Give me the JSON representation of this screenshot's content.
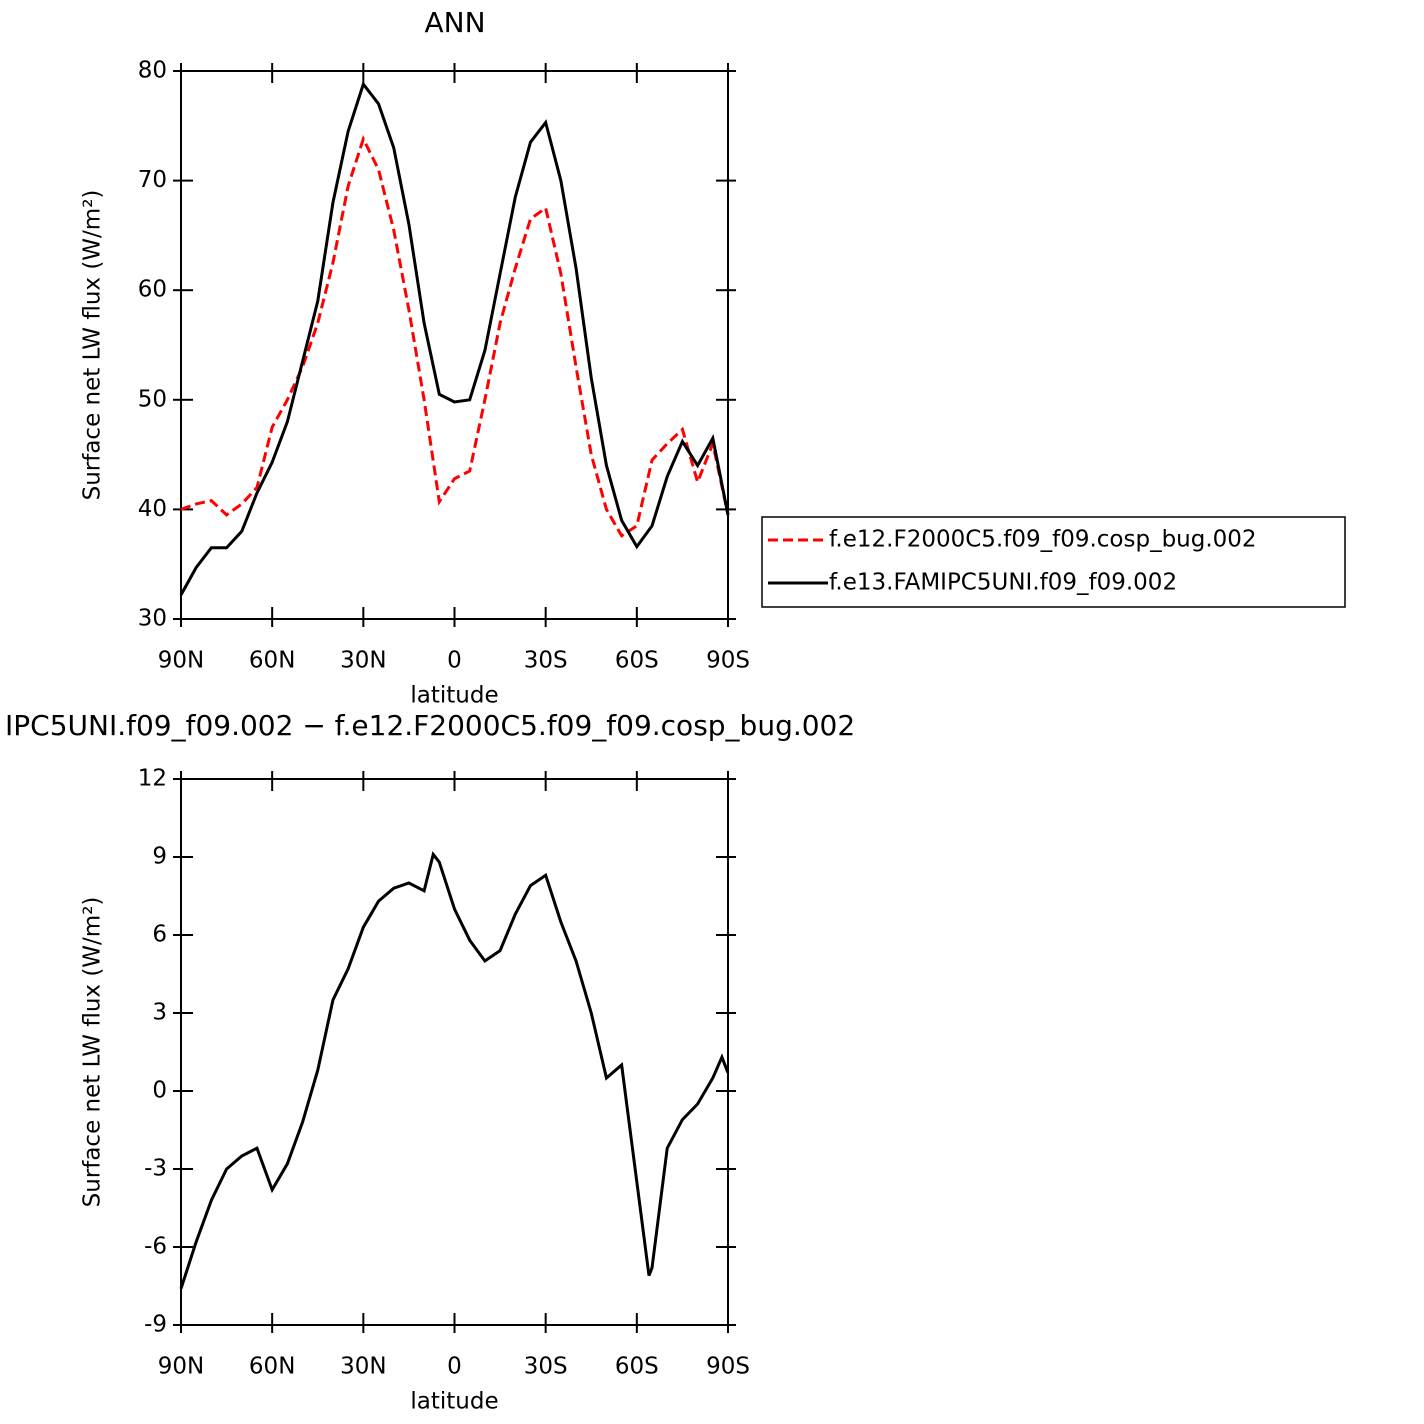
{
  "chart_data": [
    {
      "type": "line",
      "title": "ANN",
      "xlabel": "latitude",
      "ylabel": "Surface net LW flux (W/m²)",
      "x": [
        90,
        85,
        80,
        75,
        70,
        65,
        60,
        55,
        50,
        45,
        40,
        35,
        30,
        25,
        20,
        15,
        10,
        5,
        0,
        -5,
        -10,
        -15,
        -20,
        -25,
        -30,
        -35,
        -40,
        -45,
        -50,
        -55,
        -60,
        -65,
        -70,
        -75,
        -80,
        -85,
        -90
      ],
      "series": [
        {
          "name": "f.e12.F2000C5.f09_f09.cosp_bug.002",
          "color": "#ff0000",
          "line_style": "dashed",
          "values": [
            40,
            40.5,
            40.8,
            39.5,
            40.5,
            42,
            47.5,
            50,
            53,
            57,
            62.5,
            69.5,
            73.8,
            71,
            65.5,
            58.2,
            50,
            40.7,
            42.8,
            43.5,
            50,
            57,
            62,
            66.5,
            67.5,
            61.5,
            53,
            45,
            40,
            37.6,
            38.5,
            44.5,
            46,
            47.3,
            42.5,
            46,
            39.5
          ]
        },
        {
          "name": "f.e13.FAMIPC5UNI.f09_f09.002",
          "color": "#000000",
          "line_style": "solid",
          "values": [
            32.2,
            34.7,
            36.5,
            36.5,
            38,
            41.5,
            44.3,
            48,
            53.5,
            59,
            68,
            74.5,
            78.8,
            77,
            73,
            66,
            57,
            50.5,
            49.8,
            50,
            54.5,
            61.5,
            68.5,
            73.5,
            75.3,
            70,
            62,
            52,
            44,
            39,
            36.6,
            38.5,
            43,
            46.2,
            44,
            46.5,
            39.5
          ]
        }
      ],
      "xlim": [
        90,
        -90
      ],
      "xticks": [
        {
          "value": 90,
          "label": "90N"
        },
        {
          "value": 60,
          "label": "60N"
        },
        {
          "value": 30,
          "label": "30N"
        },
        0,
        {
          "value": -30,
          "label": "30S"
        },
        {
          "value": -60,
          "label": "60S"
        },
        {
          "value": -90,
          "label": "90S"
        }
      ],
      "ylim": [
        30,
        80
      ],
      "yticks": [
        30,
        40,
        50,
        60,
        70,
        80
      ],
      "legend": "right"
    },
    {
      "type": "line",
      "title": "IPC5UNI.f09_f09.002 − f.e12.F2000C5.f09_f09.cosp_bug.002",
      "xlabel": "latitude",
      "ylabel": "Surface net LW flux (W/m²)",
      "x": [
        90,
        85,
        80,
        75,
        70,
        65,
        60,
        55,
        50,
        45,
        40,
        35,
        30,
        25,
        20,
        15,
        10,
        7,
        5,
        0,
        -5,
        -10,
        -15,
        -20,
        -25,
        -30,
        -35,
        -40,
        -45,
        -50,
        -55,
        -60,
        -64,
        -65,
        -70,
        -75,
        -80,
        -85,
        -88,
        -90
      ],
      "series": [
        {
          "color": "#000000",
          "line_style": "solid",
          "values": [
            -7.6,
            -5.8,
            -4.2,
            -3,
            -2.5,
            -2.2,
            -3.8,
            -2.8,
            -1.2,
            0.8,
            3.5,
            4.7,
            6.3,
            7.3,
            7.8,
            8,
            7.7,
            9.1,
            8.8,
            7,
            5.8,
            5,
            5.4,
            6.8,
            7.9,
            8.3,
            6.5,
            5,
            3,
            0.5,
            1,
            -3.5,
            -7.1,
            -6.8,
            -2.2,
            -1.1,
            -0.5,
            0.5,
            1.3,
            0.7
          ]
        }
      ],
      "xlim": [
        90,
        -90
      ],
      "xticks": [
        {
          "value": 90,
          "label": "90N"
        },
        {
          "value": 60,
          "label": "60N"
        },
        {
          "value": 30,
          "label": "30N"
        },
        0,
        {
          "value": -30,
          "label": "30S"
        },
        {
          "value": -60,
          "label": "60S"
        },
        {
          "value": -90,
          "label": "90S"
        }
      ],
      "ylim": [
        -9,
        12
      ],
      "yticks": [
        -9,
        -6,
        -3,
        0,
        3,
        6,
        9,
        12
      ]
    }
  ]
}
